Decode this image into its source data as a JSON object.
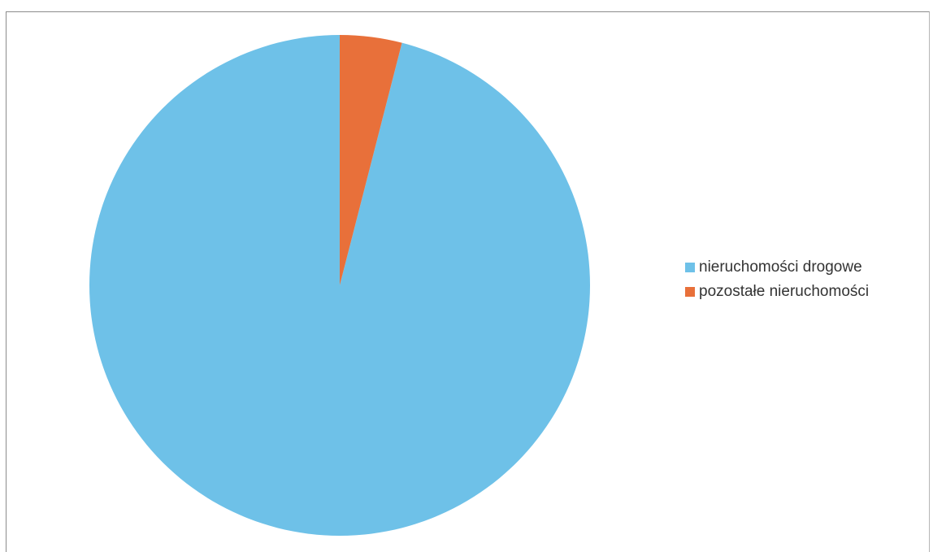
{
  "chart_data": {
    "type": "pie",
    "title": "",
    "categories": [
      "nieruchomości drogowe",
      "pozostałe nieruchomości"
    ],
    "values": [
      96,
      4
    ],
    "colors": [
      "#6ec1e8",
      "#e8703a"
    ],
    "start_angle_deg": 0,
    "direction": "counterclockwise",
    "legend_position": "right"
  }
}
